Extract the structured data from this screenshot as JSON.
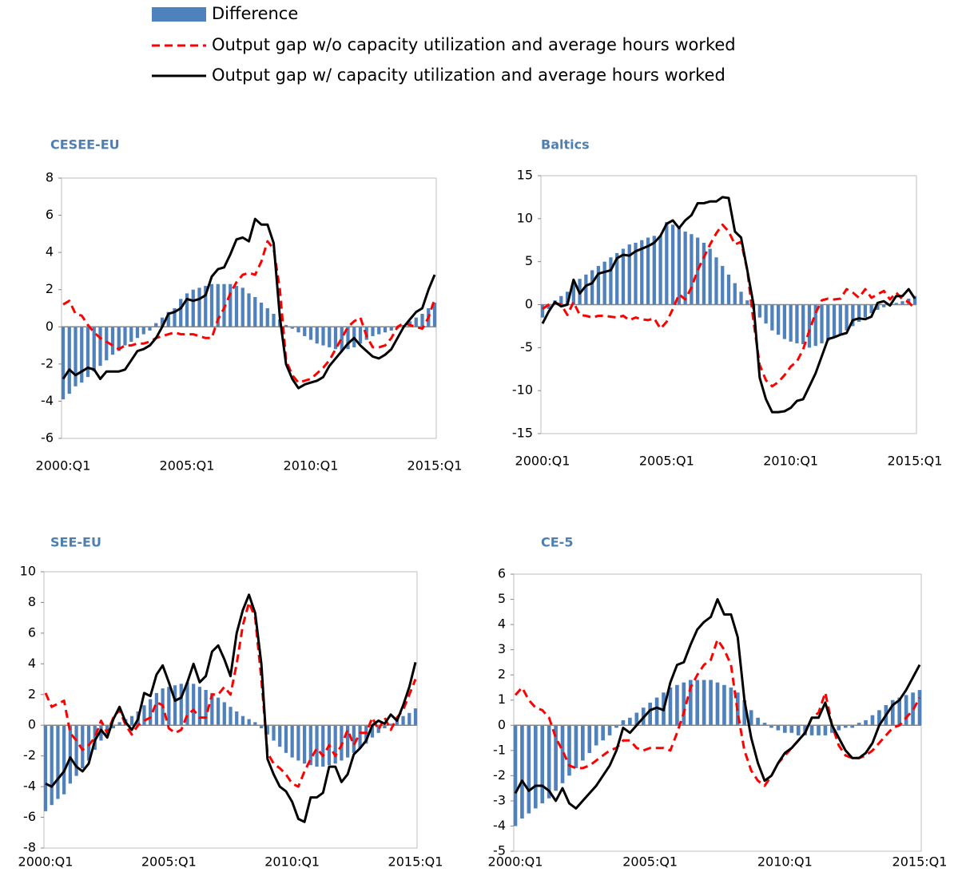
{
  "legend": [
    {
      "name": "Difference",
      "style": "bar",
      "color": "#4f81bd"
    },
    {
      "name": "Output gap w/o capacity utilization and average hours worked",
      "style": "dashed",
      "color": "#ff0000"
    },
    {
      "name": "Output gap w/ capacity utilization and average hours worked",
      "style": "solid",
      "color": "#000000"
    }
  ],
  "chart_data": [
    {
      "type": "combo",
      "title": "CESEE-EU",
      "categories": [
        "2000:Q1",
        null,
        null,
        null,
        null,
        null,
        null,
        null,
        null,
        null,
        null,
        null,
        null,
        null,
        null,
        null,
        null,
        null,
        null,
        null,
        "2005:Q1",
        null,
        null,
        null,
        null,
        null,
        null,
        null,
        null,
        null,
        null,
        null,
        null,
        null,
        null,
        null,
        null,
        null,
        null,
        null,
        "2010:Q1",
        null,
        null,
        null,
        null,
        null,
        null,
        null,
        null,
        null,
        null,
        null,
        null,
        null,
        null,
        null,
        null,
        null,
        null,
        null,
        "2015:Q1"
      ],
      "ylim": [
        -6,
        8
      ],
      "yticks": [
        -6,
        -4,
        -2,
        0,
        2,
        4,
        6,
        8
      ],
      "series": [
        {
          "values": [
            -3.9,
            -3.6,
            -3.2,
            -3.0,
            -2.7,
            -2.4,
            -2.1,
            -1.8,
            -1.5,
            -1.3,
            -1.0,
            -0.8,
            -0.6,
            -0.4,
            -0.2,
            0.2,
            0.5,
            0.8,
            1.0,
            1.5,
            1.8,
            2.0,
            2.1,
            2.2,
            2.3,
            2.3,
            2.3,
            2.3,
            2.2,
            2.1,
            1.8,
            1.6,
            1.3,
            1.0,
            0.7,
            0.4,
            0.1,
            -0.1,
            -0.3,
            -0.5,
            -0.7,
            -0.9,
            -1.0,
            -1.1,
            -1.2,
            -1.3,
            -1.2,
            -1.1,
            -0.9,
            -0.7,
            -0.5,
            -0.4,
            -0.3,
            -0.2,
            -0.1,
            0.1,
            0.3,
            0.5,
            0.7,
            1.0,
            1.3
          ]
        },
        {
          "values": [
            1.2,
            1.4,
            0.7,
            0.6,
            0.1,
            -0.3,
            -0.6,
            -0.8,
            -1.0,
            -1.2,
            -1.0,
            -1.0,
            -0.9,
            -0.9,
            -0.8,
            -0.6,
            -0.5,
            -0.4,
            -0.3,
            -0.4,
            -0.4,
            -0.4,
            -0.5,
            -0.6,
            -0.6,
            0.4,
            1.0,
            1.8,
            2.4,
            2.8,
            2.9,
            2.8,
            3.5,
            4.6,
            4.2,
            2.0,
            -1.8,
            -2.6,
            -3.0,
            -2.9,
            -2.8,
            -2.5,
            -2.2,
            -1.8,
            -1.2,
            -0.6,
            0.0,
            0.3,
            0.5,
            -0.5,
            -1.1,
            -1.1,
            -1.0,
            -0.6,
            0.0,
            0.2,
            0.1,
            0.0,
            -0.1,
            0.5,
            1.5
          ]
        },
        {
          "values": [
            -2.8,
            -2.3,
            -2.6,
            -2.4,
            -2.2,
            -2.3,
            -2.8,
            -2.4,
            -2.4,
            -2.4,
            -2.3,
            -1.8,
            -1.3,
            -1.2,
            -1.0,
            -0.6,
            0.0,
            0.7,
            0.8,
            1.0,
            1.5,
            1.4,
            1.5,
            1.7,
            2.7,
            3.1,
            3.2,
            3.9,
            4.7,
            4.8,
            4.6,
            5.8,
            5.5,
            5.5,
            4.5,
            0.5,
            -2.0,
            -2.8,
            -3.3,
            -3.1,
            -3.0,
            -2.9,
            -2.7,
            -2.1,
            -1.7,
            -1.3,
            -0.9,
            -0.6,
            -1.0,
            -1.3,
            -1.6,
            -1.7,
            -1.5,
            -1.2,
            -0.6,
            0.0,
            0.4,
            0.8,
            1.0,
            2.0,
            2.8
          ]
        }
      ]
    },
    {
      "type": "combo",
      "title": "Baltics",
      "categories": [
        "2000:Q1",
        null,
        null,
        null,
        null,
        null,
        null,
        null,
        null,
        null,
        null,
        null,
        null,
        null,
        null,
        null,
        null,
        null,
        null,
        null,
        "2005:Q1",
        null,
        null,
        null,
        null,
        null,
        null,
        null,
        null,
        null,
        null,
        null,
        null,
        null,
        null,
        null,
        null,
        null,
        null,
        null,
        "2010:Q1",
        null,
        null,
        null,
        null,
        null,
        null,
        null,
        null,
        null,
        null,
        null,
        null,
        null,
        null,
        null,
        null,
        null,
        null,
        null,
        "2015:Q1"
      ],
      "ylim": [
        -15,
        15
      ],
      "yticks": [
        -15,
        -10,
        -5,
        0,
        5,
        10,
        15
      ],
      "series": [
        {
          "values": [
            -1.5,
            -0.5,
            0.5,
            1.0,
            1.5,
            2.5,
            3.0,
            3.5,
            4.0,
            4.5,
            5.0,
            5.5,
            6.0,
            6.5,
            7.0,
            7.2,
            7.5,
            7.8,
            8.0,
            8.0,
            9.6,
            9.3,
            9.0,
            8.5,
            8.2,
            7.8,
            7.2,
            6.5,
            5.5,
            4.5,
            3.5,
            2.5,
            1.5,
            0.5,
            -0.5,
            -1.5,
            -2.2,
            -3.0,
            -3.5,
            -4.0,
            -4.3,
            -4.5,
            -4.6,
            -5.0,
            -4.8,
            -4.5,
            -4.2,
            -3.8,
            -3.4,
            -3.0,
            -2.5,
            -2.0,
            -1.5,
            -1.0,
            -0.6,
            -0.3,
            0.0,
            0.2,
            0.4,
            0.7,
            1.0
          ]
        },
        {
          "values": [
            -0.5,
            0.0,
            0.2,
            0.0,
            -1.2,
            0.3,
            -1.2,
            -1.3,
            -1.5,
            -1.3,
            -1.3,
            -1.4,
            -1.5,
            -1.3,
            -1.8,
            -1.5,
            -1.7,
            -1.8,
            -1.6,
            -2.8,
            -2.0,
            -0.5,
            1.2,
            0.6,
            2.0,
            4.0,
            5.5,
            7.0,
            8.3,
            9.3,
            8.5,
            7.0,
            7.3,
            4.0,
            -2.0,
            -7.0,
            -8.8,
            -9.5,
            -9.0,
            -8.2,
            -7.2,
            -6.6,
            -5.2,
            -3.0,
            -1.0,
            0.5,
            0.7,
            0.6,
            0.7,
            1.8,
            1.4,
            0.8,
            1.8,
            0.8,
            1.2,
            1.6,
            0.6,
            1.4,
            0.6,
            0.3,
            -0.5
          ]
        },
        {
          "values": [
            -2.2,
            -0.8,
            0.3,
            -0.2,
            0.0,
            2.9,
            1.3,
            2.2,
            2.5,
            3.6,
            3.8,
            4.0,
            5.4,
            5.8,
            5.7,
            6.2,
            6.5,
            6.8,
            7.2,
            8.0,
            9.4,
            9.8,
            8.9,
            9.8,
            10.4,
            11.8,
            11.8,
            12.0,
            12.0,
            12.5,
            12.4,
            8.5,
            7.8,
            4.0,
            0.0,
            -8.5,
            -11.0,
            -12.5,
            -12.5,
            -12.4,
            -12.0,
            -11.2,
            -11.0,
            -9.5,
            -8.0,
            -6.0,
            -4.0,
            -3.8,
            -3.5,
            -3.3,
            -1.8,
            -1.6,
            -1.7,
            -1.4,
            0.2,
            0.4,
            -0.1,
            1.0,
            1.0,
            1.8,
            0.7
          ]
        }
      ]
    },
    {
      "type": "combo",
      "title": "SEE-EU",
      "categories": [
        "2000:Q1",
        null,
        null,
        null,
        null,
        null,
        null,
        null,
        null,
        null,
        null,
        null,
        null,
        null,
        null,
        null,
        null,
        null,
        null,
        null,
        "2005:Q1",
        null,
        null,
        null,
        null,
        null,
        null,
        null,
        null,
        null,
        null,
        null,
        null,
        null,
        null,
        null,
        null,
        null,
        null,
        null,
        "2010:Q1",
        null,
        null,
        null,
        null,
        null,
        null,
        null,
        null,
        null,
        null,
        null,
        null,
        null,
        null,
        null,
        null,
        null,
        null,
        null,
        "2015:Q1"
      ],
      "ylim": [
        -8,
        10
      ],
      "yticks": [
        -8,
        -6,
        -4,
        -2,
        0,
        2,
        4,
        6,
        8,
        10
      ],
      "series": [
        {
          "values": [
            -5.6,
            -5.2,
            -4.8,
            -4.5,
            -3.8,
            -3.3,
            -2.8,
            -2.3,
            -1.6,
            -1.0,
            -0.6,
            -0.2,
            0.2,
            0.4,
            0.6,
            0.9,
            1.3,
            1.7,
            2.1,
            2.4,
            2.5,
            2.6,
            2.7,
            2.8,
            2.7,
            2.5,
            2.3,
            2.1,
            1.8,
            1.5,
            1.2,
            0.9,
            0.6,
            0.4,
            0.2,
            -0.2,
            -0.6,
            -1.0,
            -1.4,
            -1.8,
            -2.1,
            -2.3,
            -2.5,
            -2.6,
            -2.7,
            -2.7,
            -2.6,
            -2.5,
            -2.3,
            -2.1,
            -1.8,
            -1.5,
            -1.2,
            -0.8,
            -0.5,
            -0.2,
            0.1,
            0.3,
            0.6,
            0.8,
            1.1
          ]
        },
        {
          "values": [
            2.1,
            1.2,
            1.4,
            1.6,
            -0.5,
            -1.0,
            -1.6,
            -1.3,
            -0.8,
            0.3,
            -0.5,
            0.5,
            1.0,
            0.0,
            -0.6,
            0.0,
            0.3,
            0.5,
            1.5,
            1.3,
            -0.2,
            -0.5,
            -0.3,
            0.7,
            1.0,
            0.5,
            0.5,
            2.0,
            2.0,
            2.5,
            2.0,
            4.0,
            6.5,
            8.0,
            7.0,
            3.0,
            -1.8,
            -2.5,
            -2.8,
            -3.2,
            -3.8,
            -4.0,
            -3.0,
            -2.2,
            -1.5,
            -2.0,
            -1.3,
            -2.0,
            -1.3,
            -0.3,
            -1.3,
            -0.5,
            -0.5,
            0.5,
            -0.3,
            0.5,
            -0.3,
            0.5,
            1.0,
            2.0,
            3.0
          ]
        },
        {
          "values": [
            -3.8,
            -4.0,
            -3.5,
            -3.0,
            -2.1,
            -2.7,
            -3.0,
            -2.5,
            -1.0,
            -0.3,
            -0.8,
            0.4,
            1.2,
            0.2,
            -0.3,
            0.4,
            2.1,
            1.9,
            3.3,
            3.9,
            2.8,
            1.6,
            1.8,
            2.8,
            4.0,
            2.8,
            3.2,
            4.8,
            5.2,
            4.3,
            3.2,
            6.0,
            7.5,
            8.5,
            7.3,
            4.0,
            -2.2,
            -3.2,
            -4.0,
            -4.3,
            -5.0,
            -6.1,
            -6.3,
            -4.7,
            -4.7,
            -4.4,
            -2.7,
            -2.7,
            -3.7,
            -3.2,
            -1.9,
            -1.5,
            -1.0,
            0.0,
            0.3,
            0.1,
            0.7,
            0.3,
            1.3,
            2.5,
            4.1
          ]
        }
      ]
    },
    {
      "type": "combo",
      "title": "CE-5",
      "categories": [
        "2000:Q1",
        null,
        null,
        null,
        null,
        null,
        null,
        null,
        null,
        null,
        null,
        null,
        null,
        null,
        null,
        null,
        null,
        null,
        null,
        null,
        "2005:Q1",
        null,
        null,
        null,
        null,
        null,
        null,
        null,
        null,
        null,
        null,
        null,
        null,
        null,
        null,
        null,
        null,
        null,
        null,
        null,
        "2010:Q1",
        null,
        null,
        null,
        null,
        null,
        null,
        null,
        null,
        null,
        null,
        null,
        null,
        null,
        null,
        null,
        null,
        null,
        null,
        null,
        "2015:Q1"
      ],
      "ylim": [
        -5,
        6
      ],
      "yticks": [
        -5,
        -4,
        -3,
        -2,
        -1,
        0,
        1,
        2,
        3,
        4,
        5,
        6
      ],
      "series": [
        {
          "values": [
            -4.0,
            -3.7,
            -3.5,
            -3.3,
            -3.1,
            -2.9,
            -2.6,
            -2.3,
            -2.0,
            -1.7,
            -1.4,
            -1.1,
            -0.8,
            -0.6,
            -0.4,
            -0.1,
            0.2,
            0.3,
            0.5,
            0.7,
            0.9,
            1.1,
            1.3,
            1.5,
            1.6,
            1.7,
            1.8,
            1.8,
            1.8,
            1.8,
            1.7,
            1.6,
            1.5,
            1.3,
            1.0,
            0.6,
            0.3,
            0.1,
            -0.1,
            -0.2,
            -0.3,
            -0.3,
            -0.4,
            -0.4,
            -0.4,
            -0.4,
            -0.4,
            -0.3,
            -0.2,
            -0.1,
            -0.1,
            0.1,
            0.2,
            0.4,
            0.6,
            0.8,
            1.0,
            1.1,
            1.2,
            1.3,
            1.4
          ]
        },
        {
          "values": [
            1.2,
            1.5,
            1.0,
            0.7,
            0.6,
            0.3,
            -0.5,
            -1.0,
            -1.6,
            -1.7,
            -1.7,
            -1.6,
            -1.4,
            -1.2,
            -1.0,
            -0.9,
            -0.6,
            -0.6,
            -0.9,
            -1.0,
            -0.9,
            -0.9,
            -0.9,
            -1.0,
            -0.3,
            0.5,
            1.5,
            2.0,
            2.4,
            2.6,
            3.4,
            3.0,
            2.4,
            0.5,
            -1.0,
            -1.8,
            -2.2,
            -2.4,
            -2.0,
            -1.5,
            -1.2,
            -0.9,
            -0.6,
            -0.3,
            0.3,
            0.5,
            1.3,
            0.0,
            -0.8,
            -1.2,
            -1.3,
            -1.3,
            -1.2,
            -1.0,
            -0.7,
            -0.4,
            -0.1,
            0.0,
            0.3,
            0.6,
            1.1
          ]
        },
        {
          "values": [
            -2.7,
            -2.2,
            -2.6,
            -2.4,
            -2.4,
            -2.6,
            -3.0,
            -2.5,
            -3.1,
            -3.3,
            -3.0,
            -2.7,
            -2.4,
            -2.0,
            -1.6,
            -1.0,
            -0.1,
            -0.3,
            0.0,
            0.3,
            0.6,
            0.7,
            0.6,
            1.7,
            2.4,
            2.5,
            3.2,
            3.8,
            4.1,
            4.3,
            5.0,
            4.4,
            4.4,
            3.5,
            1.0,
            -0.5,
            -1.5,
            -2.2,
            -2.0,
            -1.5,
            -1.1,
            -0.9,
            -0.6,
            -0.3,
            0.3,
            0.3,
            0.9,
            0.0,
            -0.5,
            -1.0,
            -1.3,
            -1.3,
            -1.1,
            -0.7,
            0.0,
            0.4,
            0.8,
            1.0,
            1.4,
            1.9,
            2.4
          ]
        }
      ]
    }
  ]
}
